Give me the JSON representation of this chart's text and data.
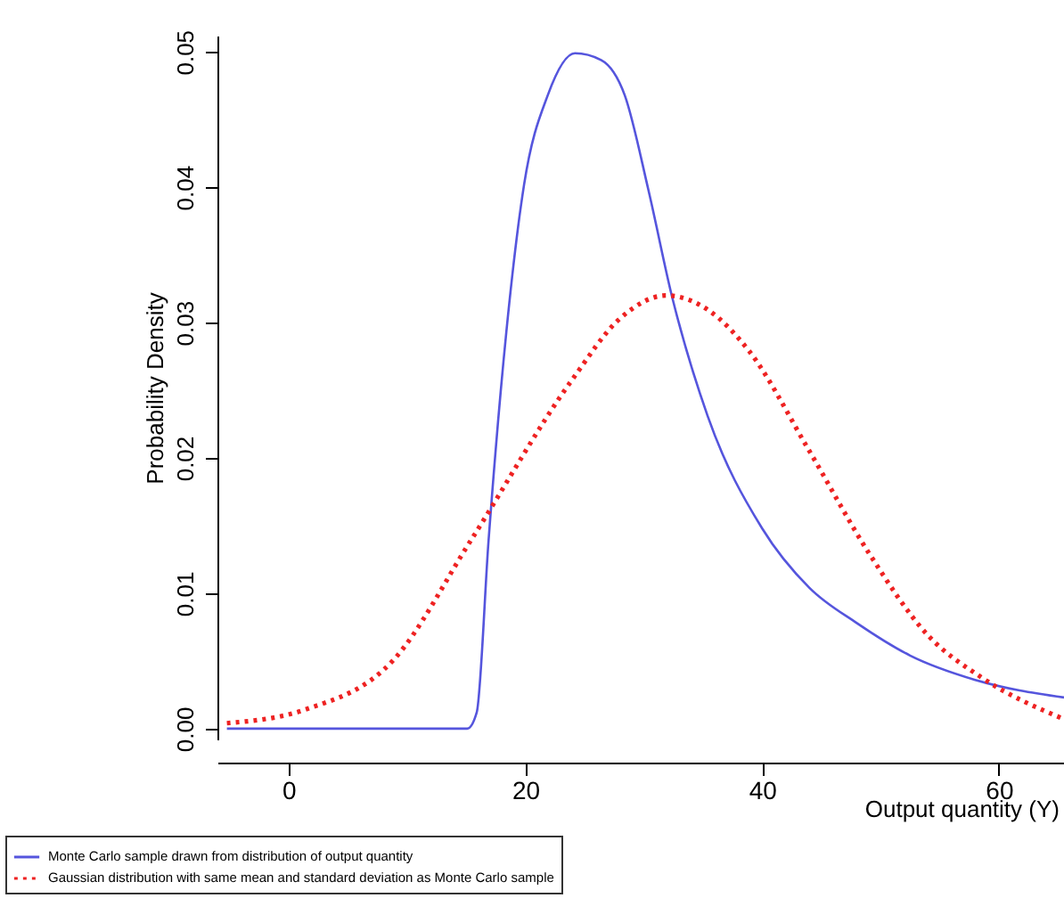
{
  "chart_data": {
    "type": "line",
    "xlabel": "Output quantity (Y)",
    "ylabel": "Probability Density",
    "xlim": [
      -6,
      65.5
    ],
    "ylim": [
      -0.0008,
      0.0512
    ],
    "xticks": [
      0,
      20,
      40,
      60
    ],
    "yticks": [
      {
        "value": 0,
        "label": "0.00"
      },
      {
        "value": 0.01,
        "label": "0.01"
      },
      {
        "value": 0.02,
        "label": "0.02"
      },
      {
        "value": 0.03,
        "label": "0.03"
      },
      {
        "value": 0.04,
        "label": "0.04"
      },
      {
        "value": 0.05,
        "label": "0.05"
      }
    ],
    "grid": false,
    "legend": "bottom left",
    "marker": "none",
    "series": [
      {
        "name": "Monte Carlo sample drawn from distribution of output quantity",
        "color": "#5555dd",
        "line_style": "solid",
        "x": [
          -5.2,
          15.1,
          15.9,
          16.9,
          18.4,
          19.9,
          21.9,
          24.2,
          26.4,
          28.4,
          30.4,
          32.4,
          35.4,
          40.0,
          44.0,
          48.0,
          52.5,
          58.0,
          65.5
        ],
        "values": [
          0,
          0,
          0.0012,
          0.0139,
          0.0293,
          0.0402,
          0.0468,
          0.0499,
          0.0494,
          0.0468,
          0.0398,
          0.0319,
          0.0231,
          0.0148,
          0.0104,
          0.0078,
          0.0054,
          0.0036,
          0.0023
        ]
      },
      {
        "name": "Gaussian distribution with same mean and standard deviation as Monte Carlo sample",
        "color": "#ee2222",
        "line_style": "dotted",
        "x": [
          -5.2,
          1.4,
          8.9,
          15.4,
          23.9,
          28.0,
          31.9,
          35.5,
          38.9,
          44.0,
          49.0,
          54.0,
          58.5,
          65.5
        ],
        "values": [
          0.0004,
          0.0014,
          0.0051,
          0.0139,
          0.0257,
          0.0303,
          0.032,
          0.0309,
          0.0279,
          0.0205,
          0.013,
          0.0069,
          0.0038,
          0.0007
        ]
      }
    ]
  }
}
